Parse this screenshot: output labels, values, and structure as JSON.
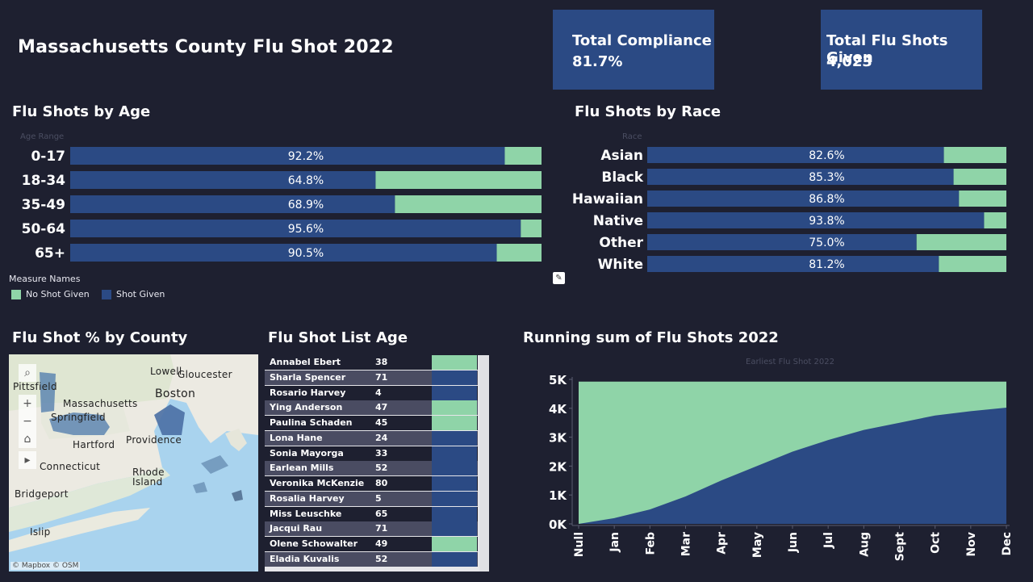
{
  "title": "Massachusetts County Flu Shot 2022",
  "kpis": {
    "compliance": {
      "label": "Total Compliance",
      "value": "81.7%"
    },
    "total": {
      "label": "Total Flu Shots Given",
      "value": "4,023"
    }
  },
  "colors": {
    "shot_given": "#2b4a84",
    "no_shot": "#8fd4a8",
    "background": "#1e2030"
  },
  "age_section": {
    "title": "Flu Shots by Age",
    "axis_header": "Age Range"
  },
  "race_section": {
    "title": "Flu Shots by Race",
    "axis_header": "Race"
  },
  "legend": {
    "title": "Measure Names",
    "no_shot": "No Shot Given",
    "shot": "Shot Given"
  },
  "county_section": {
    "title": "Flu Shot % by County"
  },
  "list_section": {
    "title": "Flu Shot List",
    "age_header": "Age"
  },
  "running_section": {
    "title": "Running sum of Flu Shots 2022",
    "axis_header": "Earliest Flu Shot 2022"
  },
  "map": {
    "labels": [
      "Lowell",
      "Gloucester",
      "Pittsfield",
      "Massachusetts",
      "Boston",
      "Springfield",
      "Hartford",
      "Providence",
      "Connecticut",
      "Rhode",
      "Island",
      "Bridgeport",
      "Islip"
    ],
    "attribution": "© Mapbox  © OSM",
    "controls": [
      "search-icon",
      "zoom-in-icon",
      "zoom-out-icon",
      "home-icon",
      "play-icon"
    ]
  },
  "patients": [
    {
      "name": "Annabel Ebert",
      "age": "38",
      "shot": false
    },
    {
      "name": "Sharla Spencer",
      "age": "71",
      "shot": true
    },
    {
      "name": "Rosario Harvey",
      "age": "4",
      "shot": true
    },
    {
      "name": "Ying Anderson",
      "age": "47",
      "shot": false
    },
    {
      "name": "Paulina Schaden",
      "age": "45",
      "shot": false
    },
    {
      "name": "Lona Hane",
      "age": "24",
      "shot": true
    },
    {
      "name": "Sonia Mayorga",
      "age": "33",
      "shot": true
    },
    {
      "name": "Earlean Mills",
      "age": "52",
      "shot": true
    },
    {
      "name": "Veronika McKenzie",
      "age": "80",
      "shot": true
    },
    {
      "name": "Rosalia Harvey",
      "age": "5",
      "shot": true
    },
    {
      "name": "Miss Leuschke",
      "age": "65",
      "shot": true
    },
    {
      "name": "Jacqui Rau",
      "age": "71",
      "shot": true
    },
    {
      "name": "Olene Schowalter",
      "age": "49",
      "shot": false
    },
    {
      "name": "Eladia Kuvalis",
      "age": "52",
      "shot": true
    }
  ],
  "chart_data": [
    {
      "type": "bar",
      "title": "Flu Shots by Age",
      "orientation": "horizontal-stacked-100",
      "categories": [
        "0-17",
        "18-34",
        "35-49",
        "50-64",
        "65+"
      ],
      "series": [
        {
          "name": "Shot Given",
          "values": [
            92.2,
            64.8,
            68.9,
            95.6,
            90.5
          ]
        },
        {
          "name": "No Shot Given",
          "values": [
            7.8,
            35.2,
            31.1,
            4.4,
            9.5
          ]
        }
      ],
      "labels": [
        "92.2%",
        "64.8%",
        "68.9%",
        "95.6%",
        "90.5%"
      ]
    },
    {
      "type": "bar",
      "title": "Flu Shots by Race",
      "orientation": "horizontal-stacked-100",
      "categories": [
        "Asian",
        "Black",
        "Hawaiian",
        "Native",
        "Other",
        "White"
      ],
      "series": [
        {
          "name": "Shot Given",
          "values": [
            82.6,
            85.3,
            86.8,
            93.8,
            75.0,
            81.2
          ]
        },
        {
          "name": "No Shot Given",
          "values": [
            17.4,
            14.7,
            13.2,
            6.2,
            25.0,
            18.8
          ]
        }
      ],
      "labels": [
        "82.6%",
        "85.3%",
        "86.8%",
        "93.8%",
        "75.0%",
        "81.2%"
      ]
    },
    {
      "type": "area",
      "title": "Running sum of Flu Shots 2022",
      "xlabel": "Earliest Flu Shot 2022",
      "categories": [
        "Null",
        "Jan",
        "Feb",
        "Mar",
        "Apr",
        "May",
        "Jun",
        "Jul",
        "Aug",
        "Sept",
        "Oct",
        "Nov",
        "Dec"
      ],
      "series": [
        {
          "name": "Shot Given",
          "values": [
            0,
            200,
            500,
            950,
            1500,
            2000,
            2500,
            2900,
            3250,
            3500,
            3750,
            3900,
            4023
          ]
        },
        {
          "name": "No Shot Given",
          "values": [
            4924,
            4924,
            4924,
            4924,
            4924,
            4924,
            4924,
            4924,
            4924,
            4924,
            4924,
            4924,
            4924
          ]
        }
      ],
      "yticks": [
        "0K",
        "1K",
        "2K",
        "3K",
        "4K",
        "5K"
      ],
      "ylim": [
        0,
        5000
      ]
    }
  ]
}
